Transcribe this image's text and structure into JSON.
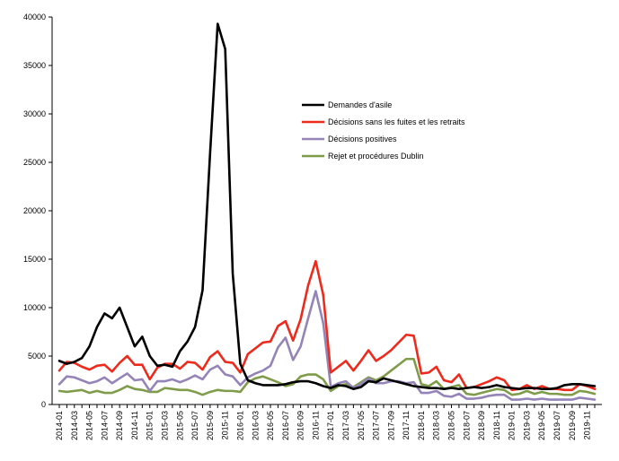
{
  "chart_data": {
    "type": "line",
    "title": "",
    "xlabel": "",
    "ylabel": "",
    "ylim": [
      0,
      40000
    ],
    "yticks": [
      0,
      5000,
      10000,
      15000,
      20000,
      25000,
      30000,
      35000,
      40000
    ],
    "grid": false,
    "legend_position": "top-right",
    "x": [
      "2014-01",
      "2014-02",
      "2014-03",
      "2014-04",
      "2014-05",
      "2014-06",
      "2014-07",
      "2014-08",
      "2014-09",
      "2014-10",
      "2014-11",
      "2014-12",
      "2015-01",
      "2015-02",
      "2015-03",
      "2015-04",
      "2015-05",
      "2015-06",
      "2015-07",
      "2015-08",
      "2015-09",
      "2015-10",
      "2015-11",
      "2015-12",
      "2016-01",
      "2016-02",
      "2016-03",
      "2016-04",
      "2016-05",
      "2016-06",
      "2016-07",
      "2016-08",
      "2016-09",
      "2016-10",
      "2016-11",
      "2016-12",
      "2017-01",
      "2017-02",
      "2017-03",
      "2017-04",
      "2017-05",
      "2017-06",
      "2017-07",
      "2017-08",
      "2017-09",
      "2017-10",
      "2017-11",
      "2017-12",
      "2018-01",
      "2018-02",
      "2018-03",
      "2018-04",
      "2018-05",
      "2018-06",
      "2018-07",
      "2018-08",
      "2018-09",
      "2018-10",
      "2018-11",
      "2018-12",
      "2019-01",
      "2019-02",
      "2019-03",
      "2019-04",
      "2019-05",
      "2019-06",
      "2019-07",
      "2019-08",
      "2019-09",
      "2019-10",
      "2019-11",
      "2019-12"
    ],
    "x_tick_labels": [
      "2014-01",
      "2014-03",
      "2014-05",
      "2014-07",
      "2014-09",
      "2014-11",
      "2015-01",
      "2015-03",
      "2015-05",
      "2015-07",
      "2015-09",
      "2015-11",
      "2016-01",
      "2016-03",
      "2016-05",
      "2016-07",
      "2016-09",
      "2016-11",
      "2017-01",
      "2017-03",
      "2017-05",
      "2017-07",
      "2017-09",
      "2017-11",
      "2018-01",
      "2018-03",
      "2018-05",
      "2018-07",
      "2018-09",
      "2018-11",
      "2019-01",
      "2019-03",
      "2019-05",
      "2019-07",
      "2019-09",
      "2019-11"
    ],
    "series": [
      {
        "name": "Demandes d'asile",
        "color": "#000000",
        "values": [
          4500,
          4200,
          4400,
          4800,
          6000,
          8000,
          9400,
          8900,
          10000,
          8000,
          6000,
          7000,
          5000,
          4000,
          4100,
          3900,
          5500,
          6500,
          8000,
          11800,
          26000,
          39300,
          36700,
          13500,
          4200,
          2500,
          2200,
          2000,
          2000,
          2000,
          2100,
          2300,
          2400,
          2400,
          2200,
          1900,
          1700,
          2000,
          1900,
          1600,
          1800,
          2400,
          2300,
          2700,
          2500,
          2300,
          2100,
          1900,
          1800,
          1700,
          1700,
          1600,
          1700,
          1600,
          1700,
          1800,
          1700,
          1800,
          2000,
          1800,
          1700,
          1600,
          1700,
          1700,
          1600,
          1600,
          1700,
          2000,
          2100,
          2100,
          2000,
          1900
        ]
      },
      {
        "name": "Décisions sans les fuites et les retraits",
        "color": "#ee2a1c",
        "values": [
          3500,
          4400,
          4300,
          3900,
          3600,
          4000,
          4100,
          3400,
          4300,
          5000,
          4100,
          4100,
          2600,
          3800,
          4200,
          4200,
          3700,
          4400,
          4300,
          3600,
          4900,
          5500,
          4400,
          4300,
          3300,
          5200,
          5800,
          6400,
          6500,
          8100,
          8600,
          6600,
          8800,
          12300,
          14800,
          11300,
          3300,
          3900,
          4500,
          3500,
          4500,
          5600,
          4500,
          5000,
          5600,
          6400,
          7200,
          7100,
          3200,
          3300,
          3900,
          2500,
          2300,
          3100,
          1700,
          1800,
          2100,
          2400,
          2800,
          2500,
          1500,
          1600,
          2000,
          1600,
          1900,
          1600,
          1600,
          1500,
          1500,
          2100,
          1900,
          1600
        ]
      },
      {
        "name": "Décisions positives",
        "color": "#9484b8",
        "values": [
          2100,
          2900,
          2800,
          2500,
          2200,
          2400,
          2800,
          2200,
          2700,
          3200,
          2500,
          2600,
          1400,
          2400,
          2400,
          2600,
          2300,
          2600,
          3000,
          2600,
          3600,
          4000,
          3100,
          2900,
          2000,
          2800,
          3200,
          3500,
          4000,
          5900,
          6900,
          4600,
          6000,
          8900,
          11700,
          8400,
          1800,
          2200,
          2400,
          1700,
          2100,
          2700,
          2200,
          2200,
          2400,
          2400,
          2200,
          2300,
          1200,
          1200,
          1400,
          900,
          800,
          1100,
          600,
          600,
          700,
          900,
          1000,
          1000,
          500,
          500,
          600,
          500,
          600,
          500,
          500,
          500,
          500,
          700,
          600,
          500
        ]
      },
      {
        "name": "Rejet et procédures Dublin",
        "color": "#7f9c4a",
        "values": [
          1400,
          1300,
          1400,
          1500,
          1200,
          1400,
          1200,
          1200,
          1500,
          1900,
          1600,
          1500,
          1300,
          1300,
          1700,
          1600,
          1500,
          1500,
          1300,
          1000,
          1300,
          1500,
          1400,
          1400,
          1300,
          2300,
          2700,
          2900,
          2600,
          2300,
          1900,
          2100,
          2900,
          3100,
          3100,
          2600,
          1400,
          1900,
          2100,
          1800,
          2300,
          2800,
          2500,
          2900,
          3500,
          4100,
          4700,
          4700,
          2100,
          1900,
          2400,
          1600,
          1800,
          2000,
          1100,
          1000,
          1200,
          1400,
          1600,
          1500,
          1000,
          1100,
          1400,
          1100,
          1300,
          1100,
          1100,
          1000,
          1000,
          1400,
          1300,
          1100
        ]
      }
    ]
  }
}
